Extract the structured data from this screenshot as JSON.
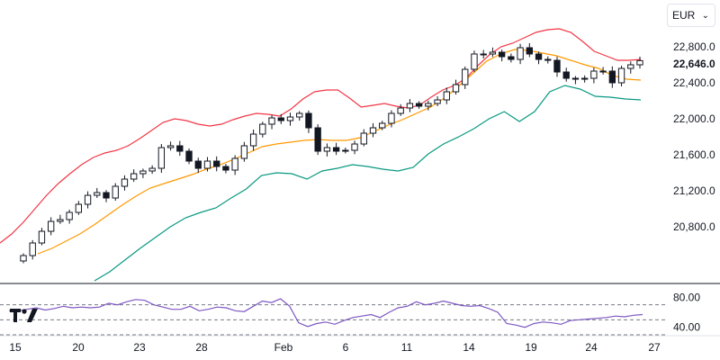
{
  "currency": {
    "selected": "EUR",
    "chevron_icon": "chevron-down-icon"
  },
  "last_price": "22,646.0",
  "logo": {
    "name": "tradingview-logo-icon",
    "text": "TV"
  },
  "colors": {
    "upper_band": "#f23645",
    "middle_band": "#ff9800",
    "lower_band": "#089981",
    "rsi": "#7e57c2",
    "candle": "#131722"
  },
  "chart_data": [
    {
      "type": "candlestick",
      "title": "",
      "x_tick_labels": [
        "15",
        "20",
        "23",
        "28",
        "Feb",
        "6",
        "11",
        "14",
        "19",
        "24",
        "27"
      ],
      "y_tick_labels": [
        "22,800.0",
        "22,400.0",
        "22,000.0",
        "21,600.0",
        "21,200.0",
        "20,800.0"
      ],
      "ylim": [
        20600,
        23050
      ],
      "close": [
        20480,
        20620,
        20750,
        20860,
        20880,
        20960,
        21050,
        21150,
        21180,
        21120,
        21250,
        21330,
        21390,
        21420,
        21450,
        21680,
        21700,
        21640,
        21530,
        21450,
        21530,
        21470,
        21430,
        21560,
        21700,
        21830,
        21940,
        22010,
        21980,
        22020,
        22060,
        21900,
        21640,
        21680,
        21640,
        21650,
        21720,
        21840,
        21900,
        21950,
        22060,
        22120,
        22170,
        22140,
        22170,
        22210,
        22300,
        22380,
        22550,
        22720,
        22720,
        22740,
        22690,
        22660,
        22790,
        22720,
        22660,
        22650,
        22520,
        22450,
        22440,
        22450,
        22530,
        22530,
        22400,
        22560,
        22600,
        22646
      ],
      "upper_band": [
        20620,
        20720,
        20850,
        21000,
        21150,
        21280,
        21390,
        21490,
        21570,
        21620,
        21650,
        21700,
        21780,
        21870,
        21960,
        22000,
        21980,
        21940,
        21920,
        21940,
        21990,
        22030,
        22060,
        22050,
        22030,
        22110,
        22220,
        22300,
        22320,
        22320,
        22230,
        22130,
        22150,
        22170,
        22140,
        22120,
        22150,
        22240,
        22320,
        22370,
        22450,
        22590,
        22710,
        22800,
        22840,
        22900,
        22960,
        22990,
        23000,
        22960,
        22860,
        22750,
        22700,
        22650,
        22650,
        22660
      ],
      "middle_band": [
        20500,
        20560,
        20640,
        20720,
        20820,
        20930,
        21040,
        21140,
        21230,
        21280,
        21330,
        21380,
        21440,
        21490,
        21550,
        21620,
        21690,
        21720,
        21740,
        21760,
        21770,
        21760,
        21760,
        21790,
        21860,
        21930,
        21990,
        22060,
        22130,
        22230,
        22360,
        22500,
        22640,
        22720,
        22770,
        22760,
        22730,
        22700,
        22650,
        22600,
        22560,
        22480,
        22440,
        22430
      ],
      "lower_band": [
        20200,
        20300,
        20430,
        20560,
        20680,
        20800,
        20900,
        20960,
        21010,
        21120,
        21220,
        21370,
        21400,
        21390,
        21330,
        21420,
        21450,
        21490,
        21470,
        21440,
        21420,
        21460,
        21610,
        21720,
        21800,
        21890,
        22000,
        22080,
        21970,
        22080,
        22300,
        22370,
        22330,
        22250,
        22240,
        22220,
        22210
      ],
      "series": [
        {
          "name": "",
          "color": "#131722"
        }
      ]
    },
    {
      "type": "line",
      "title": "",
      "y_tick_labels": [
        "80.00",
        "40.00"
      ],
      "ylim": [
        30,
        90
      ],
      "reference_lines": [
        70,
        50,
        30
      ],
      "rsi": [
        62,
        62,
        64,
        66,
        63,
        65,
        68,
        66,
        67,
        66,
        67,
        72,
        70,
        74,
        77,
        76,
        70,
        67,
        64,
        64,
        68,
        62,
        64,
        67,
        66,
        62,
        61,
        68,
        75,
        73,
        78,
        68,
        46,
        41,
        45,
        47,
        44,
        49,
        53,
        55,
        57,
        53,
        60,
        66,
        68,
        74,
        70,
        72,
        75,
        72,
        69,
        68,
        69,
        65,
        60,
        45,
        43,
        40,
        45,
        47,
        46,
        44,
        49,
        50,
        51,
        52,
        53,
        55,
        54,
        56,
        57
      ]
    }
  ]
}
